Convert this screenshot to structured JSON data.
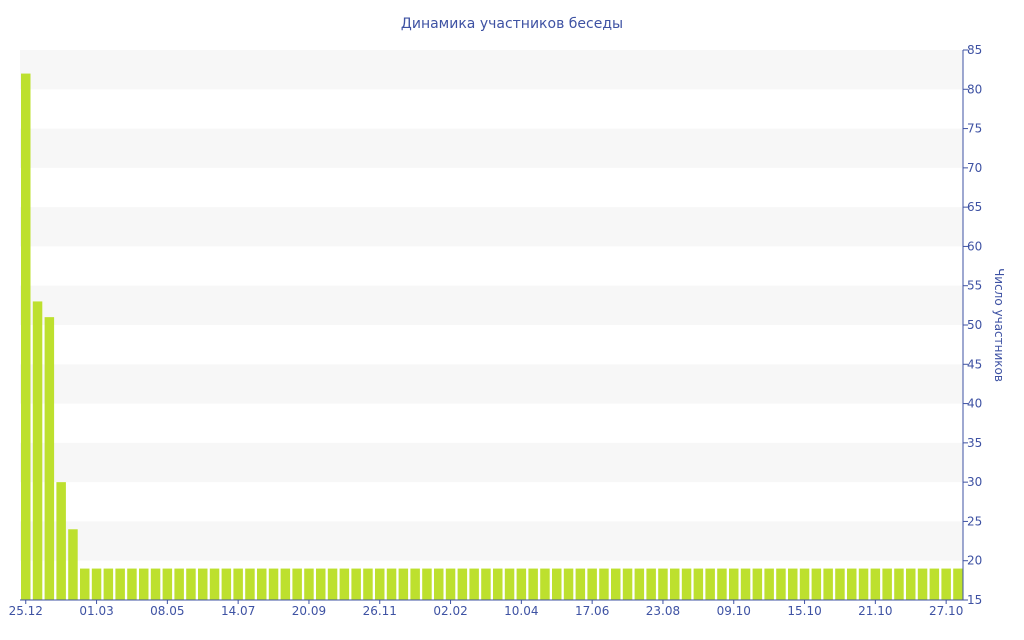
{
  "chart_data": {
    "type": "bar",
    "title": "Динамика участников беседы",
    "xlabel": "",
    "ylabel": "Число участников",
    "ylim": [
      15,
      85
    ],
    "yticks": [
      15,
      20,
      25,
      30,
      35,
      40,
      45,
      50,
      55,
      60,
      65,
      70,
      75,
      80,
      85
    ],
    "y_axis_side": "right",
    "grid": "alternating horizontal bands",
    "bar_color": "#bde02e",
    "axis_color": "#3e52a3",
    "band_color": "#f7f7f7",
    "xtick_labels": [
      {
        "index": 0,
        "label": "25.12"
      },
      {
        "index": 6,
        "label": "01.03"
      },
      {
        "index": 12,
        "label": "08.05"
      },
      {
        "index": 18,
        "label": "14.07"
      },
      {
        "index": 24,
        "label": "20.09"
      },
      {
        "index": 30,
        "label": "26.11"
      },
      {
        "index": 36,
        "label": "02.02"
      },
      {
        "index": 42,
        "label": "10.04"
      },
      {
        "index": 48,
        "label": "17.06"
      },
      {
        "index": 54,
        "label": "23.08"
      },
      {
        "index": 60,
        "label": "09.10"
      },
      {
        "index": 66,
        "label": "15.10"
      },
      {
        "index": 72,
        "label": "21.10"
      },
      {
        "index": 78,
        "label": "27.10"
      }
    ],
    "values": [
      82,
      53,
      51,
      30,
      24,
      19,
      19,
      19,
      19,
      19,
      19,
      19,
      19,
      19,
      19,
      19,
      19,
      19,
      19,
      19,
      19,
      19,
      19,
      19,
      19,
      19,
      19,
      19,
      19,
      19,
      19,
      19,
      19,
      19,
      19,
      19,
      19,
      19,
      19,
      19,
      19,
      19,
      19,
      19,
      19,
      19,
      19,
      19,
      19,
      19,
      19,
      19,
      19,
      19,
      19,
      19,
      19,
      19,
      19,
      19,
      19,
      19,
      19,
      19,
      19,
      19,
      19,
      19,
      19,
      19,
      19,
      19,
      19,
      19,
      19,
      19,
      19,
      19,
      19,
      19
    ]
  }
}
